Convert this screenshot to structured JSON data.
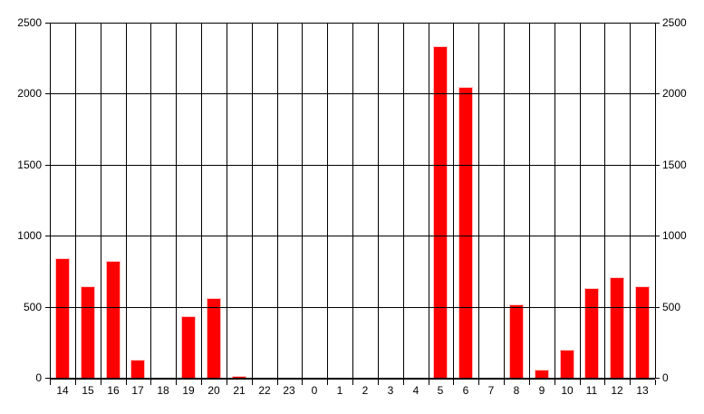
{
  "chart_data": {
    "type": "bar",
    "title": "",
    "xlabel": "",
    "ylabel": "",
    "categories": [
      "14",
      "15",
      "16",
      "17",
      "18",
      "19",
      "20",
      "21",
      "22",
      "23",
      "0",
      "1",
      "2",
      "3",
      "4",
      "5",
      "6",
      "7",
      "8",
      "9",
      "10",
      "11",
      "12",
      "13"
    ],
    "values": [
      845,
      645,
      820,
      130,
      0,
      435,
      560,
      10,
      0,
      0,
      0,
      0,
      0,
      0,
      0,
      2335,
      2050,
      0,
      515,
      60,
      195,
      630,
      710,
      645
    ],
    "ylim": [
      0,
      2500
    ],
    "yticks": [
      0,
      500,
      1000,
      1500,
      2000,
      2500
    ],
    "ytick_labels": [
      "0",
      "500",
      "1000",
      "1500",
      "2000",
      "2500"
    ],
    "y_axis_sides": "both",
    "grid": "on",
    "legend": "none",
    "colors": {
      "bar": "#ff0000",
      "grid": "#000000",
      "text": "#000000",
      "background": "#ffffff"
    }
  }
}
